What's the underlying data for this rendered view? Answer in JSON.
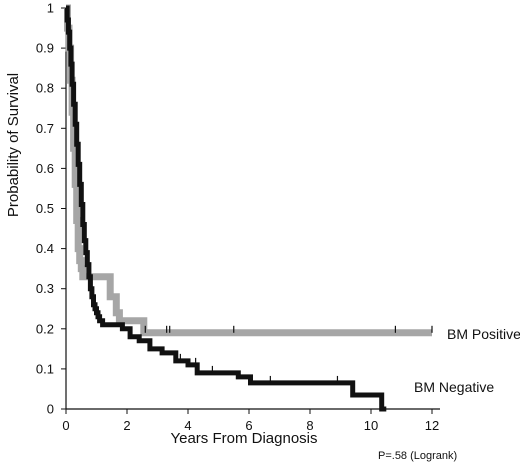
{
  "chart_data": {
    "type": "line",
    "title": "",
    "xlabel": "Years From Diagnosis",
    "ylabel": "Probability of Survival",
    "xlim": [
      0,
      12
    ],
    "ylim": [
      0,
      1
    ],
    "x_ticks": [
      "0",
      "2",
      "4",
      "6",
      "8",
      "10",
      "12"
    ],
    "y_ticks": [
      "0",
      "0.1",
      "0.2",
      "0.3",
      "0.4",
      "0.5",
      "0.6",
      "0.7",
      "0.8",
      "0.9",
      "1"
    ],
    "grid": false,
    "series": [
      {
        "name": "BM Positive",
        "color": "#a6a6a6",
        "step": true,
        "x": [
          0,
          0.05,
          0.1,
          0.15,
          0.2,
          0.25,
          0.3,
          0.35,
          0.4,
          0.45,
          0.5,
          0.55,
          0.6,
          1.2,
          1.45,
          1.55,
          1.65,
          1.75,
          2.55,
          12
        ],
        "y": [
          1.0,
          0.95,
          0.9,
          0.82,
          0.74,
          0.65,
          0.56,
          0.47,
          0.4,
          0.37,
          0.35,
          0.33,
          0.33,
          0.33,
          0.28,
          0.28,
          0.24,
          0.22,
          0.19,
          0.19
        ],
        "censor_x": [
          2.6,
          3.3,
          3.4,
          5.5,
          10.8,
          12.0
        ]
      },
      {
        "name": "BM Negative",
        "color": "#111111",
        "step": true,
        "x": [
          0,
          0.04,
          0.08,
          0.12,
          0.16,
          0.2,
          0.25,
          0.3,
          0.35,
          0.4,
          0.45,
          0.5,
          0.55,
          0.6,
          0.65,
          0.7,
          0.75,
          0.8,
          0.85,
          0.9,
          0.95,
          1.0,
          1.05,
          1.1,
          1.2,
          1.35,
          1.55,
          1.85,
          2.1,
          2.4,
          2.75,
          3.15,
          3.6,
          4.0,
          4.3,
          5.15,
          5.65,
          6.05,
          9.1,
          9.4,
          10.35,
          10.5
        ],
        "y": [
          1.0,
          0.97,
          0.94,
          0.9,
          0.86,
          0.81,
          0.76,
          0.71,
          0.66,
          0.61,
          0.56,
          0.51,
          0.46,
          0.42,
          0.39,
          0.36,
          0.33,
          0.3,
          0.28,
          0.26,
          0.25,
          0.24,
          0.23,
          0.22,
          0.21,
          0.21,
          0.21,
          0.2,
          0.18,
          0.17,
          0.15,
          0.14,
          0.12,
          0.11,
          0.09,
          0.09,
          0.08,
          0.065,
          0.065,
          0.035,
          0.0,
          0.0
        ],
        "censor_x": [
          3.75,
          4.25,
          4.8,
          6.7,
          8.9
        ]
      }
    ],
    "series_labels": [
      "BM Positive",
      "BM Negative"
    ],
    "annotation": "P=.58 (Logrank)"
  }
}
